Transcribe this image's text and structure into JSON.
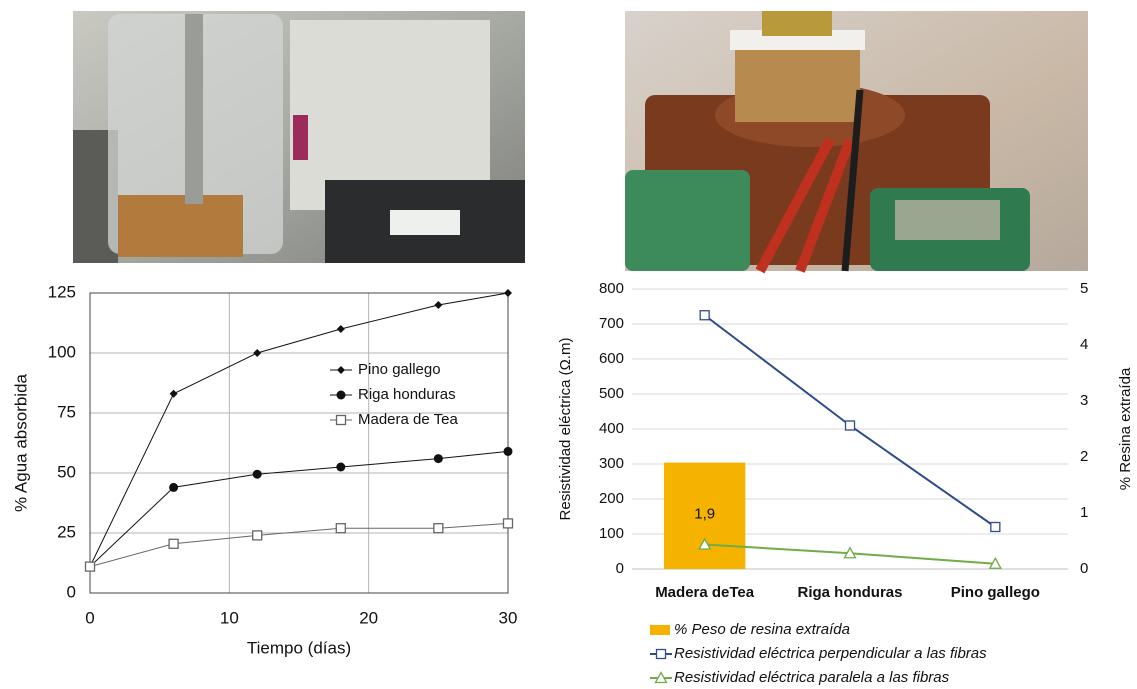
{
  "chart_data": [
    {
      "type": "line",
      "x_label": "Tiempo (días)",
      "y_label": "% Agua absorbida",
      "x": [
        0,
        6,
        12,
        18,
        25,
        30
      ],
      "series": [
        {
          "name": "Pino gallego",
          "color": "#111111",
          "marker": "diamond",
          "values": [
            11,
            83,
            100,
            110,
            120,
            125
          ]
        },
        {
          "name": "Riga honduras",
          "color": "#111111",
          "marker": "circle",
          "values": [
            11,
            44,
            49.5,
            52.5,
            56,
            59
          ]
        },
        {
          "name": "Madera de Tea",
          "color": "#666666",
          "marker": "open-square",
          "values": [
            11,
            20.5,
            24,
            27,
            27,
            29
          ]
        }
      ],
      "xlim": [
        0,
        30
      ],
      "xticks": [
        0,
        10,
        20,
        30
      ],
      "ylim": [
        0,
        125
      ],
      "yticks": [
        0,
        25,
        50,
        75,
        100,
        125
      ],
      "grid": true,
      "legend": "right"
    },
    {
      "type": "combo",
      "y_label": "Resistividad eléctrica (Ω.m)",
      "y2_label": "% Resina extraída",
      "categories": [
        "Madera deTea",
        "Riga honduras",
        "Pino gallego"
      ],
      "series": [
        {
          "name": "% Peso de resina extraída",
          "type": "bar",
          "axis": "y2",
          "color": "#f5b300",
          "values": [
            1.9,
            null,
            null
          ],
          "value_labels": [
            "1,9",
            null,
            null
          ]
        },
        {
          "name": "Resistividad eléctrica perpendicular a las fibras",
          "type": "line",
          "color": "#2f4b8c",
          "marker": "open-square",
          "values": [
            725,
            410,
            120
          ]
        },
        {
          "name": "Resistividad eléctrica paralela a las fibras",
          "type": "line",
          "color": "#70ad47",
          "marker": "open-triangle",
          "values": [
            70,
            45,
            15
          ]
        }
      ],
      "ylim": [
        0,
        800
      ],
      "yticks": [
        0,
        100,
        200,
        300,
        400,
        500,
        600,
        700,
        800
      ],
      "y2lim": [
        0,
        5
      ],
      "y2ticks": [
        0,
        1,
        2,
        3,
        4,
        5
      ],
      "grid": true,
      "legend": "bottom"
    }
  ]
}
